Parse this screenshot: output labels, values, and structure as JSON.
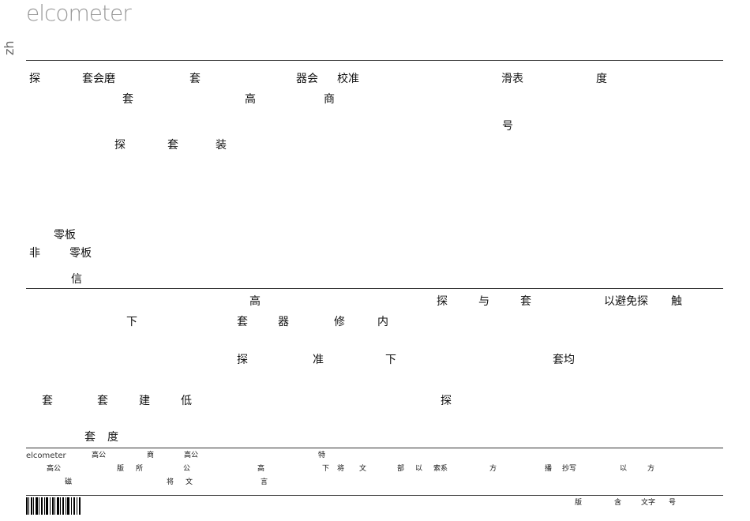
{
  "header": {
    "logo": "elcometer",
    "language": "zh"
  },
  "section1": [
    "探",
    "套会磨",
    "套",
    "器会",
    "校准",
    "滑表",
    "度",
    "套",
    "高",
    "商",
    "号",
    "探",
    "套",
    "装",
    "零板",
    "非",
    "零板",
    "信"
  ],
  "section2": [
    "高",
    "探",
    "与",
    "套",
    "以避免探",
    "触",
    "下",
    "套",
    "器",
    "修",
    "内",
    "探",
    "准",
    "下",
    "套均",
    "套",
    "套",
    "建",
    "低",
    "探",
    "套",
    "度"
  ],
  "footer": {
    "logo": "elcometer",
    "texts": [
      "高公",
      "商",
      "高公",
      "特",
      "高公",
      "版",
      "所",
      "公",
      "高",
      "下",
      "将",
      "文",
      "部",
      "以",
      "索系",
      "方",
      "播",
      "抄写",
      "以",
      "方",
      "磁",
      "将",
      "文",
      "言"
    ]
  },
  "bottom": [
    "版",
    "含",
    "文字",
    "号"
  ]
}
